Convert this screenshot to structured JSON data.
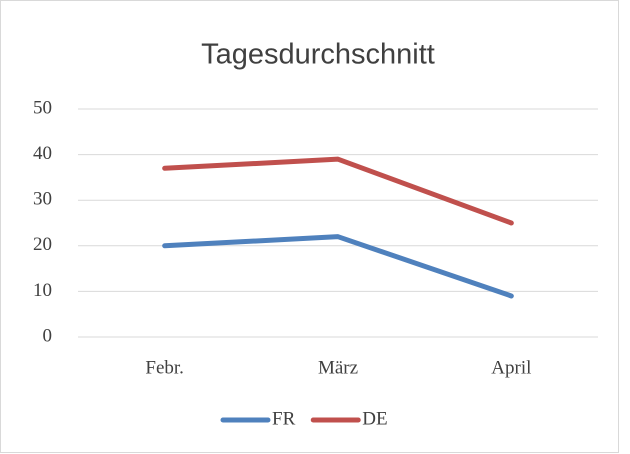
{
  "chart_data": {
    "type": "line",
    "title": "Tagesdurchschnitt",
    "categories": [
      "Febr.",
      "März",
      "April"
    ],
    "series": [
      {
        "name": "FR",
        "color": "#4f81bd",
        "values": [
          20,
          22,
          9
        ]
      },
      {
        "name": "DE",
        "color": "#c0504d",
        "values": [
          37,
          39,
          25
        ]
      }
    ],
    "ylim": [
      0,
      50
    ],
    "yticks": [
      0,
      10,
      20,
      30,
      40,
      50
    ],
    "grid": true,
    "legend": "bottom"
  }
}
